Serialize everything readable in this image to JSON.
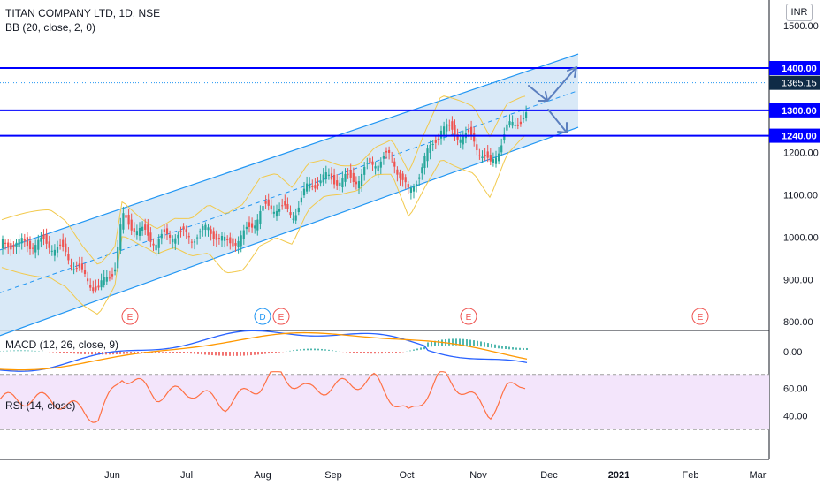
{
  "header": {
    "title": "TITAN COMPANY LTD, 1D, NSE",
    "indicator": "BB (20, close, 2, 0)",
    "currency_button": "INR"
  },
  "panes": {
    "macd_label": "MACD (12, 26, close, 9)",
    "rsi_label": "RSI (14, close)"
  },
  "colors": {
    "up": "#26a69a",
    "down": "#ef5350",
    "hline": "#0000ff",
    "channel_fill": "#cfe3f5",
    "channel_line": "#2196f3",
    "bb": "#f2c94c",
    "macd": "#2962ff",
    "signal": "#ff9800",
    "rsi": "#ff7043",
    "rsi_band": "#f3e5fb",
    "price_label_bg": "#131722"
  },
  "chart_data": {
    "type": "candlestick",
    "title": "TITAN COMPANY LTD, 1D, NSE",
    "price_axis": {
      "ticks": [
        "1500.00",
        "1400.00",
        "1300.00",
        "1240.00",
        "1200.00",
        "1100.00",
        "1000.00",
        "900.00",
        "800.00"
      ],
      "range": [
        780,
        1510
      ]
    },
    "horizontal_levels": [
      {
        "value": 1400,
        "label": "1400.00"
      },
      {
        "value": 1300,
        "label": "1300.00"
      },
      {
        "value": 1240,
        "label": "1240.00"
      }
    ],
    "last_price": {
      "value": 1365.15,
      "label": "1365.15"
    },
    "x_axis_labels": [
      "Jun",
      "Jul",
      "Aug",
      "Sep",
      "Oct",
      "Nov",
      "Dec",
      "2021",
      "Feb",
      "Mar"
    ],
    "event_markers": [
      {
        "label": "E",
        "month": "Jun"
      },
      {
        "label": "D",
        "month": "Aug"
      },
      {
        "label": "E",
        "month": "Aug"
      },
      {
        "label": "E",
        "month": "Oct"
      },
      {
        "label": "E",
        "month": "Feb"
      }
    ],
    "channel": {
      "start": {
        "date": "2020-05-05",
        "lower": 810,
        "upper": 1010
      },
      "end": {
        "date": "2020-12-01",
        "lower": 1235,
        "upper": 1410
      }
    },
    "close_path": [
      [
        "2020-05-05",
        985
      ],
      [
        "2020-05-12",
        960
      ],
      [
        "2020-05-19",
        910
      ],
      [
        "2020-05-26",
        875
      ],
      [
        "2020-06-02",
        930
      ],
      [
        "2020-06-05",
        1045
      ],
      [
        "2020-06-12",
        1015
      ],
      [
        "2020-06-19",
        990
      ],
      [
        "2020-06-26",
        1010
      ],
      [
        "2020-07-03",
        1000
      ],
      [
        "2020-07-10",
        1020
      ],
      [
        "2020-07-17",
        985
      ],
      [
        "2020-07-24",
        1000
      ],
      [
        "2020-07-31",
        1060
      ],
      [
        "2020-08-07",
        1075
      ],
      [
        "2020-08-14",
        1050
      ],
      [
        "2020-08-21",
        1120
      ],
      [
        "2020-08-28",
        1140
      ],
      [
        "2020-09-04",
        1135
      ],
      [
        "2020-09-11",
        1140
      ],
      [
        "2020-09-18",
        1180
      ],
      [
        "2020-09-25",
        1190
      ],
      [
        "2020-10-02",
        1100
      ],
      [
        "2020-10-09",
        1185
      ],
      [
        "2020-10-16",
        1260
      ],
      [
        "2020-10-23",
        1245
      ],
      [
        "2020-10-30",
        1230
      ],
      [
        "2020-11-06",
        1165
      ],
      [
        "2020-11-13",
        1255
      ],
      [
        "2020-11-20",
        1285
      ],
      [
        "2020-11-27",
        1300
      ],
      [
        "2020-12-01",
        1365
      ]
    ],
    "macd_axis": {
      "ticks": [
        "0.00"
      ]
    },
    "rsi_axis": {
      "ticks": [
        "60.00",
        "40.00"
      ],
      "band": [
        30,
        70
      ]
    },
    "rsi_path": [
      [
        "2020-05-05",
        52
      ],
      [
        "2020-05-19",
        44
      ],
      [
        "2020-05-26",
        38
      ],
      [
        "2020-06-05",
        70
      ],
      [
        "2020-06-19",
        55
      ],
      [
        "2020-07-03",
        58
      ],
      [
        "2020-07-17",
        48
      ],
      [
        "2020-07-31",
        62
      ],
      [
        "2020-08-07",
        72
      ],
      [
        "2020-08-21",
        58
      ],
      [
        "2020-09-04",
        62
      ],
      [
        "2020-09-18",
        66
      ],
      [
        "2020-10-02",
        40
      ],
      [
        "2020-10-16",
        70
      ],
      [
        "2020-10-23",
        62
      ],
      [
        "2020-11-06",
        42
      ],
      [
        "2020-11-13",
        58
      ],
      [
        "2020-11-20",
        65
      ],
      [
        "2020-11-27",
        63
      ],
      [
        "2020-12-01",
        72
      ]
    ]
  }
}
